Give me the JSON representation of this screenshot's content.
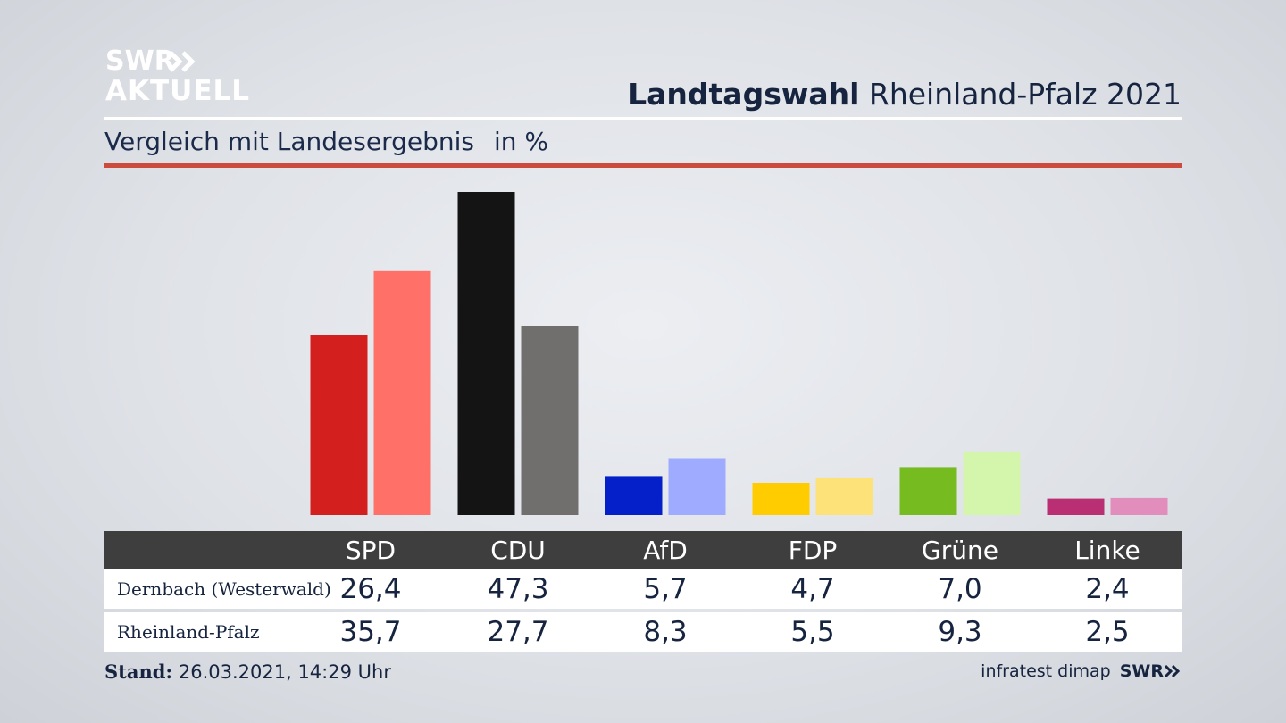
{
  "brand": {
    "line1": "SWR",
    "line2": "AKTUELL"
  },
  "header": {
    "title_bold": "Landtagswahl",
    "title_rest": " Rheinland-Pfalz 2021"
  },
  "subtitle": {
    "text": "Vergleich mit Landesergebnis",
    "unit": "in %"
  },
  "footer": {
    "stand_label": "Stand:",
    "stand_value": " 26.03.2021, 14:29 Uhr",
    "source": "infratest dimap",
    "source_brand": "SWR"
  },
  "table": {
    "row_labels": [
      "Dernbach (Westerwald)",
      "Rheinland-Pfalz"
    ],
    "columns": [
      "SPD",
      "CDU",
      "AfD",
      "FDP",
      "Grüne",
      "Linke"
    ],
    "rows": [
      [
        "26,4",
        "47,3",
        "5,7",
        "4,7",
        "7,0",
        "2,4"
      ],
      [
        "35,7",
        "27,7",
        "8,3",
        "5,5",
        "9,3",
        "2,5"
      ]
    ]
  },
  "chart_data": {
    "type": "bar",
    "categories": [
      "SPD",
      "CDU",
      "AfD",
      "FDP",
      "Grüne",
      "Linke"
    ],
    "series": [
      {
        "name": "Dernbach (Westerwald)",
        "values": [
          26.4,
          47.3,
          5.7,
          4.7,
          7.0,
          2.4
        ],
        "colors": [
          "#d41f1f",
          "#141414",
          "#0520c8",
          "#ffcc00",
          "#76bb20",
          "#ba2e74"
        ]
      },
      {
        "name": "Rheinland-Pfalz",
        "values": [
          35.7,
          27.7,
          8.3,
          5.5,
          9.3,
          2.5
        ],
        "colors": [
          "#ff7068",
          "#706f6d",
          "#9eabff",
          "#fde27a",
          "#d4f5ac",
          "#e18ebc"
        ]
      }
    ],
    "ylim": [
      0,
      47.3
    ],
    "grid": false
  }
}
